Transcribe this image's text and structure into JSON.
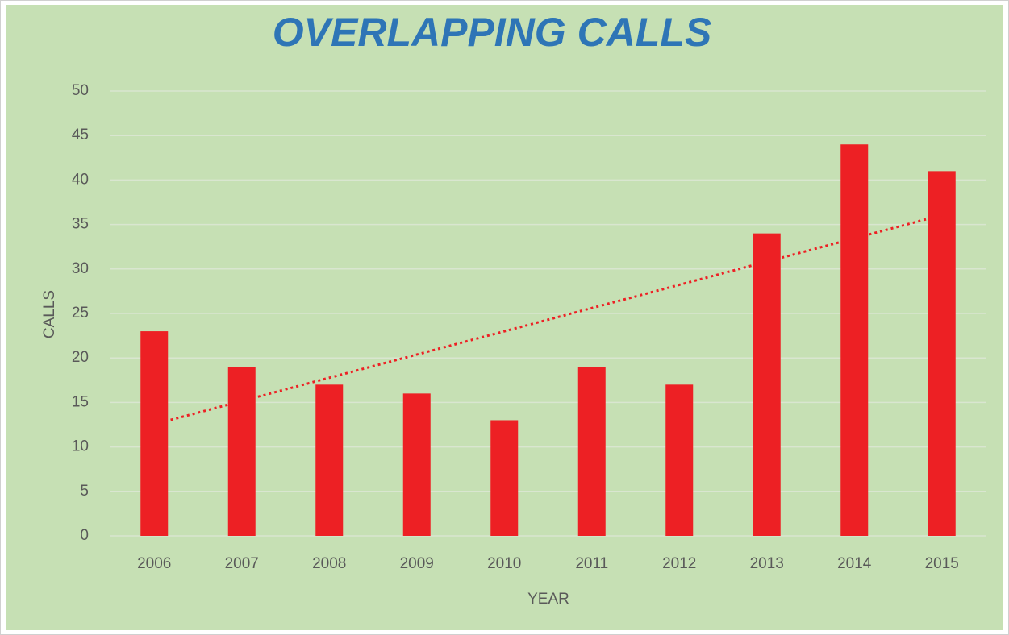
{
  "chart_data": {
    "type": "bar",
    "title": "OVERLAPPING CALLS",
    "x_label": "YEAR",
    "y_label": "CALLS",
    "categories": [
      "2006",
      "2007",
      "2008",
      "2009",
      "2010",
      "2011",
      "2012",
      "2013",
      "2014",
      "2015"
    ],
    "values": [
      23,
      19,
      17,
      16,
      13,
      19,
      17,
      34,
      44,
      41
    ],
    "color": "#ed2024",
    "ylim": [
      0,
      50
    ],
    "yticks": [
      0,
      5,
      10,
      15,
      20,
      25,
      30,
      35,
      40,
      45,
      50
    ],
    "grid": true,
    "trendline": "linear",
    "trendline_color": "#ed2024"
  }
}
